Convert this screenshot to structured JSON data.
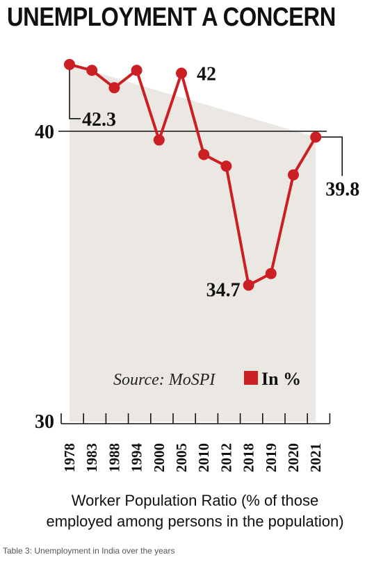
{
  "title": "UNEMPLOYMENT A CONCERN",
  "source_label": "Source: MoSPI",
  "legend_label": "In %",
  "xlabel_line1": "Worker Population Ratio (% of those",
  "xlabel_line2": "employed among persons in the population)",
  "caption": "Table 3: Unemployment in India over the years",
  "colors": {
    "line": "#cc1f23",
    "area": "#ebe8e3",
    "text": "#111111"
  },
  "chart_data": {
    "type": "line",
    "title": "UNEMPLOYMENT A CONCERN",
    "xlabel": "Worker Population Ratio (% of those employed among persons in the population)",
    "ylabel": "",
    "categories": [
      "1978",
      "1983",
      "1988",
      "1994",
      "2000",
      "2005",
      "2010",
      "2012",
      "2018",
      "2019",
      "2020",
      "2021"
    ],
    "series": [
      {
        "name": "In %",
        "values": [
          42.3,
          42.1,
          41.5,
          42.1,
          39.7,
          42.0,
          39.2,
          38.8,
          34.7,
          35.1,
          38.5,
          39.8
        ]
      }
    ],
    "annotations": [
      {
        "category": "1978",
        "value": 42.3,
        "label": "42.3"
      },
      {
        "category": "2005",
        "value": 42.0,
        "label": "42"
      },
      {
        "category": "2018",
        "value": 34.7,
        "label": "34.7"
      },
      {
        "category": "2021",
        "value": 39.8,
        "label": "39.8"
      }
    ],
    "yticks": [
      "30",
      "40"
    ],
    "reference_line": 40,
    "ylim": [
      30,
      43.5
    ],
    "grid": false,
    "legend": "bottom-right"
  }
}
